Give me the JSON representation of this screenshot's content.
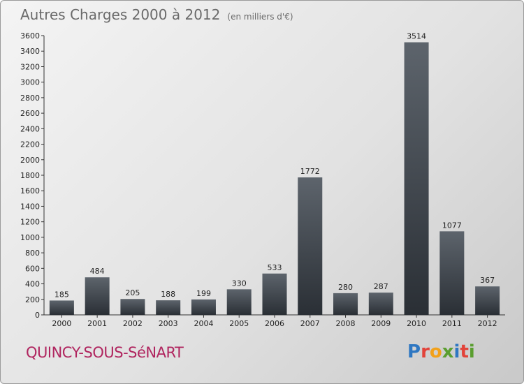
{
  "header": {
    "title": "Autres Charges 2000 à 2012",
    "subtitle": "(en milliers d'€)"
  },
  "footer": {
    "city": "QUINCY-SOUS-SéNART",
    "logo_text": "Proxiti",
    "logo_colors": [
      "#2e77c2",
      "#e2433a",
      "#f2a11a",
      "#5a9e2f",
      "#2e77c2",
      "#e2433a",
      "#5a9e2f"
    ]
  },
  "colors": {
    "bar_dark": "#2a2f35",
    "bar_light": "#5d646c",
    "city": "#b0255f",
    "title": "#6a6a6a"
  },
  "chart_data": {
    "type": "bar",
    "title": "Autres Charges 2000 à 2012",
    "subtitle": "(en milliers d'€)",
    "categories": [
      "2000",
      "2001",
      "2002",
      "2003",
      "2004",
      "2005",
      "2006",
      "2007",
      "2008",
      "2009",
      "2010",
      "2011",
      "2012"
    ],
    "values": [
      185,
      484,
      205,
      188,
      199,
      330,
      533,
      1772,
      280,
      287,
      3514,
      1077,
      367
    ],
    "ylim": [
      0,
      3600
    ],
    "yticks": [
      0,
      200,
      400,
      600,
      800,
      1000,
      1200,
      1400,
      1600,
      1800,
      2000,
      2200,
      2400,
      2600,
      2800,
      3000,
      3200,
      3400,
      3600
    ],
    "grid": false,
    "data_labels": true
  }
}
